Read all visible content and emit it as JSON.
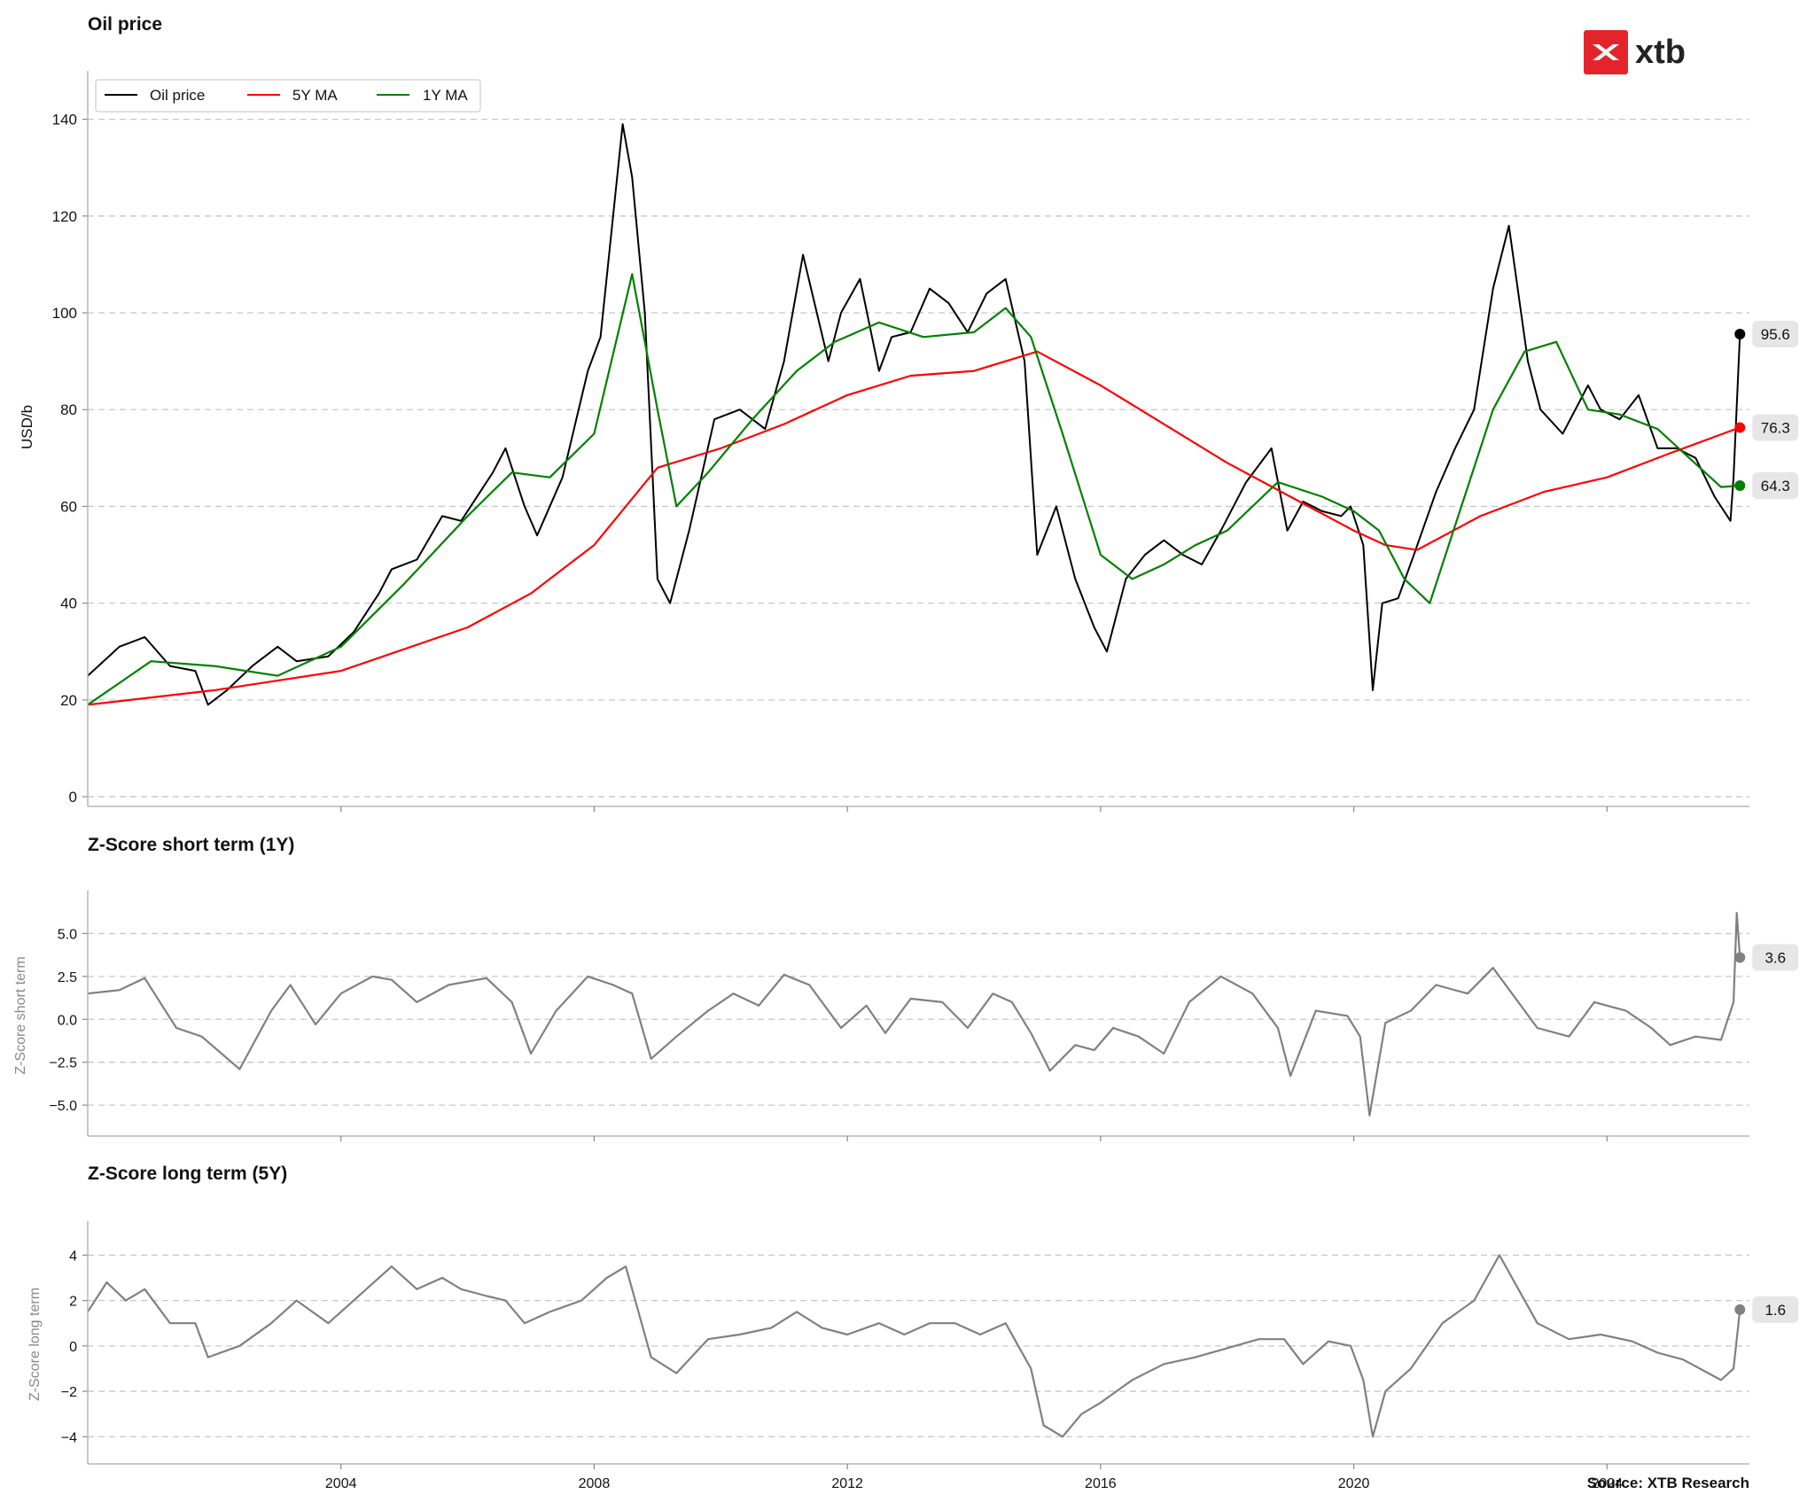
{
  "logo": {
    "text": "xtb",
    "brand_color": "#e3242b"
  },
  "source": "Source: XTB Research",
  "x_ticks": [
    "2004",
    "2008",
    "2012",
    "2016",
    "2020",
    "2024"
  ],
  "x_tick_years": [
    2004,
    2008,
    2012,
    2016,
    2020,
    2024
  ],
  "x_range": [
    2000.0,
    2026.25
  ],
  "chart_data": [
    {
      "type": "line",
      "title": "Oil price",
      "ylabel": "USD/b",
      "ylim": [
        -2,
        150
      ],
      "yticks": [
        0,
        20,
        40,
        60,
        80,
        100,
        120,
        140
      ],
      "ytick_labels": [
        "0",
        "20",
        "40",
        "60",
        "80",
        "100",
        "120",
        "140"
      ],
      "grid": "horizontal dashed",
      "legend": "top-left",
      "series": [
        {
          "name": "Oil price",
          "color": "#000000",
          "end_label": "95.6",
          "x": [
            2000.0,
            2000.5,
            2000.9,
            2001.3,
            2001.7,
            2001.9,
            2002.2,
            2002.6,
            2003.0,
            2003.3,
            2003.8,
            2004.2,
            2004.6,
            2004.8,
            2005.2,
            2005.6,
            2005.9,
            2006.4,
            2006.6,
            2006.9,
            2007.1,
            2007.5,
            2007.9,
            2008.1,
            2008.45,
            2008.6,
            2008.8,
            2009.0,
            2009.2,
            2009.5,
            2009.9,
            2010.3,
            2010.7,
            2011.0,
            2011.3,
            2011.7,
            2011.9,
            2012.2,
            2012.5,
            2012.7,
            2013.0,
            2013.3,
            2013.6,
            2013.9,
            2014.2,
            2014.5,
            2014.8,
            2015.0,
            2015.3,
            2015.6,
            2015.9,
            2016.1,
            2016.4,
            2016.7,
            2017.0,
            2017.3,
            2017.6,
            2017.9,
            2018.3,
            2018.7,
            2018.95,
            2019.2,
            2019.5,
            2019.8,
            2019.95,
            2020.15,
            2020.3,
            2020.45,
            2020.7,
            2020.95,
            2021.3,
            2021.6,
            2021.9,
            2022.2,
            2022.45,
            2022.75,
            2022.95,
            2023.3,
            2023.7,
            2023.9,
            2024.2,
            2024.5,
            2024.8,
            2025.1,
            2025.4,
            2025.7,
            2025.95,
            2026.0,
            2026.1
          ],
          "y": [
            25,
            31,
            33,
            27,
            26,
            19,
            22,
            27,
            31,
            28,
            29,
            34,
            42,
            47,
            49,
            58,
            57,
            67,
            72,
            60,
            54,
            66,
            88,
            95,
            139,
            128,
            100,
            45,
            40,
            55,
            78,
            80,
            76,
            90,
            112,
            90,
            100,
            107,
            88,
            95,
            96,
            105,
            102,
            96,
            104,
            107,
            90,
            50,
            60,
            45,
            35,
            30,
            45,
            50,
            53,
            50,
            48,
            55,
            65,
            72,
            55,
            61,
            59,
            58,
            60,
            52,
            22,
            40,
            41,
            50,
            63,
            72,
            80,
            105,
            118,
            90,
            80,
            75,
            85,
            80,
            78,
            83,
            72,
            72,
            70,
            62,
            57,
            66,
            95.6
          ]
        },
        {
          "name": "5Y MA",
          "color": "#ff0000",
          "end_label": "76.3",
          "x": [
            2000,
            2002,
            2004,
            2006,
            2007,
            2008,
            2009,
            2010,
            2011,
            2012,
            2013,
            2014,
            2015,
            2016,
            2017,
            2018,
            2019,
            2020,
            2020.5,
            2021,
            2022,
            2023,
            2024,
            2025,
            2026.1
          ],
          "y": [
            19,
            22,
            26,
            35,
            42,
            52,
            68,
            72,
            77,
            83,
            87,
            88,
            92,
            85,
            77,
            69,
            62,
            55,
            52,
            51,
            58,
            63,
            66,
            71,
            76.3
          ]
        },
        {
          "name": "1Y MA",
          "color": "#008000",
          "end_label": "64.3",
          "x": [
            2000,
            2001,
            2002,
            2003,
            2004,
            2005,
            2006,
            2006.7,
            2007.3,
            2008.0,
            2008.6,
            2009.0,
            2009.3,
            2009.8,
            2010.5,
            2011.2,
            2011.8,
            2012.5,
            2013.2,
            2014.0,
            2014.5,
            2014.9,
            2015.4,
            2016.0,
            2016.5,
            2017.0,
            2017.5,
            2018.0,
            2018.8,
            2019.5,
            2020.0,
            2020.4,
            2020.8,
            2021.2,
            2021.7,
            2022.2,
            2022.7,
            2023.2,
            2023.7,
            2024.2,
            2024.8,
            2025.3,
            2025.8,
            2026.1
          ],
          "y": [
            19,
            28,
            27,
            25,
            31,
            44,
            58,
            67,
            66,
            75,
            108,
            80,
            60,
            67,
            78,
            88,
            94,
            98,
            95,
            96,
            101,
            95,
            75,
            50,
            45,
            48,
            52,
            55,
            65,
            62,
            59,
            55,
            45,
            40,
            60,
            80,
            92,
            94,
            80,
            79,
            76,
            70,
            64,
            64.3
          ]
        }
      ]
    },
    {
      "type": "line",
      "title": "Z-Score short term (1Y)",
      "ylabel": "Z-Score short term",
      "ylim": [
        -6.8,
        7.5
      ],
      "yticks": [
        -5.0,
        -2.5,
        0.0,
        2.5,
        5.0
      ],
      "ytick_labels": [
        "−5.0",
        "−2.5",
        "0.0",
        "2.5",
        "5.0"
      ],
      "grid": "horizontal dashed",
      "series": [
        {
          "color": "#808080",
          "end_label": "3.6",
          "x": [
            2000.0,
            2000.5,
            2000.9,
            2001.4,
            2001.8,
            2002.4,
            2002.9,
            2003.2,
            2003.6,
            2004.0,
            2004.5,
            2004.8,
            2005.2,
            2005.7,
            2006.3,
            2006.7,
            2007.0,
            2007.4,
            2007.9,
            2008.3,
            2008.6,
            2008.9,
            2009.3,
            2009.8,
            2010.2,
            2010.6,
            2011.0,
            2011.4,
            2011.9,
            2012.3,
            2012.6,
            2013.0,
            2013.5,
            2013.9,
            2014.3,
            2014.6,
            2014.9,
            2015.2,
            2015.6,
            2015.9,
            2016.2,
            2016.6,
            2017.0,
            2017.4,
            2017.9,
            2018.4,
            2018.8,
            2019.0,
            2019.4,
            2019.9,
            2020.1,
            2020.25,
            2020.5,
            2020.9,
            2021.3,
            2021.8,
            2022.2,
            2022.5,
            2022.9,
            2023.4,
            2023.8,
            2024.3,
            2024.7,
            2025.0,
            2025.4,
            2025.8,
            2026.0,
            2026.05,
            2026.1
          ],
          "y": [
            1.5,
            1.7,
            2.4,
            -0.5,
            -1.0,
            -2.9,
            0.5,
            2.0,
            -0.3,
            1.5,
            2.5,
            2.3,
            1.0,
            2.0,
            2.4,
            1.0,
            -2.0,
            0.5,
            2.5,
            2.0,
            1.5,
            -2.3,
            -1.0,
            0.5,
            1.5,
            0.8,
            2.6,
            2.0,
            -0.5,
            0.8,
            -0.8,
            1.2,
            1.0,
            -0.5,
            1.5,
            1.0,
            -0.8,
            -3.0,
            -1.5,
            -1.8,
            -0.5,
            -1.0,
            -2.0,
            1.0,
            2.5,
            1.5,
            -0.5,
            -3.3,
            0.5,
            0.2,
            -1.0,
            -5.6,
            -0.2,
            0.5,
            2.0,
            1.5,
            3.0,
            1.5,
            -0.5,
            -1.0,
            1.0,
            0.5,
            -0.5,
            -1.5,
            -1.0,
            -1.2,
            1.0,
            6.2,
            3.6
          ]
        }
      ]
    },
    {
      "type": "line",
      "title": "Z-Score long term (5Y)",
      "ylabel": "Z-Score long term",
      "ylim": [
        -5.2,
        5.5
      ],
      "yticks": [
        -4,
        -2,
        0,
        2,
        4
      ],
      "ytick_labels": [
        "−4",
        "−2",
        "0",
        "2",
        "4"
      ],
      "grid": "horizontal dashed",
      "series": [
        {
          "color": "#808080",
          "end_label": "1.6",
          "x": [
            2000.0,
            2000.3,
            2000.6,
            2000.9,
            2001.3,
            2001.7,
            2001.9,
            2002.4,
            2002.9,
            2003.3,
            2003.8,
            2004.4,
            2004.8,
            2005.2,
            2005.6,
            2005.9,
            2006.3,
            2006.6,
            2006.9,
            2007.3,
            2007.8,
            2008.2,
            2008.5,
            2008.9,
            2009.3,
            2009.8,
            2010.3,
            2010.8,
            2011.2,
            2011.6,
            2012.0,
            2012.5,
            2012.9,
            2013.3,
            2013.7,
            2014.1,
            2014.5,
            2014.9,
            2015.1,
            2015.4,
            2015.7,
            2016.0,
            2016.5,
            2017.0,
            2017.5,
            2018.0,
            2018.5,
            2018.9,
            2019.2,
            2019.6,
            2019.95,
            2020.15,
            2020.3,
            2020.5,
            2020.9,
            2021.4,
            2021.9,
            2022.3,
            2022.6,
            2022.9,
            2023.4,
            2023.9,
            2024.4,
            2024.8,
            2025.2,
            2025.6,
            2025.8,
            2026.0,
            2026.1
          ],
          "y": [
            1.5,
            2.8,
            2.0,
            2.5,
            1.0,
            1.0,
            -0.5,
            0.0,
            1.0,
            2.0,
            1.0,
            2.5,
            3.5,
            2.5,
            3.0,
            2.5,
            2.2,
            2.0,
            1.0,
            1.5,
            2.0,
            3.0,
            3.5,
            -0.5,
            -1.2,
            0.3,
            0.5,
            0.8,
            1.5,
            0.8,
            0.5,
            1.0,
            0.5,
            1.0,
            1.0,
            0.5,
            1.0,
            -1.0,
            -3.5,
            -4.0,
            -3.0,
            -2.5,
            -1.5,
            -0.8,
            -0.5,
            -0.1,
            0.3,
            0.3,
            -0.8,
            0.2,
            0.0,
            -1.5,
            -4.0,
            -2.0,
            -1.0,
            1.0,
            2.0,
            4.0,
            2.5,
            1.0,
            0.3,
            0.5,
            0.2,
            -0.3,
            -0.6,
            -1.2,
            -1.5,
            -1.0,
            1.6
          ]
        }
      ]
    }
  ]
}
